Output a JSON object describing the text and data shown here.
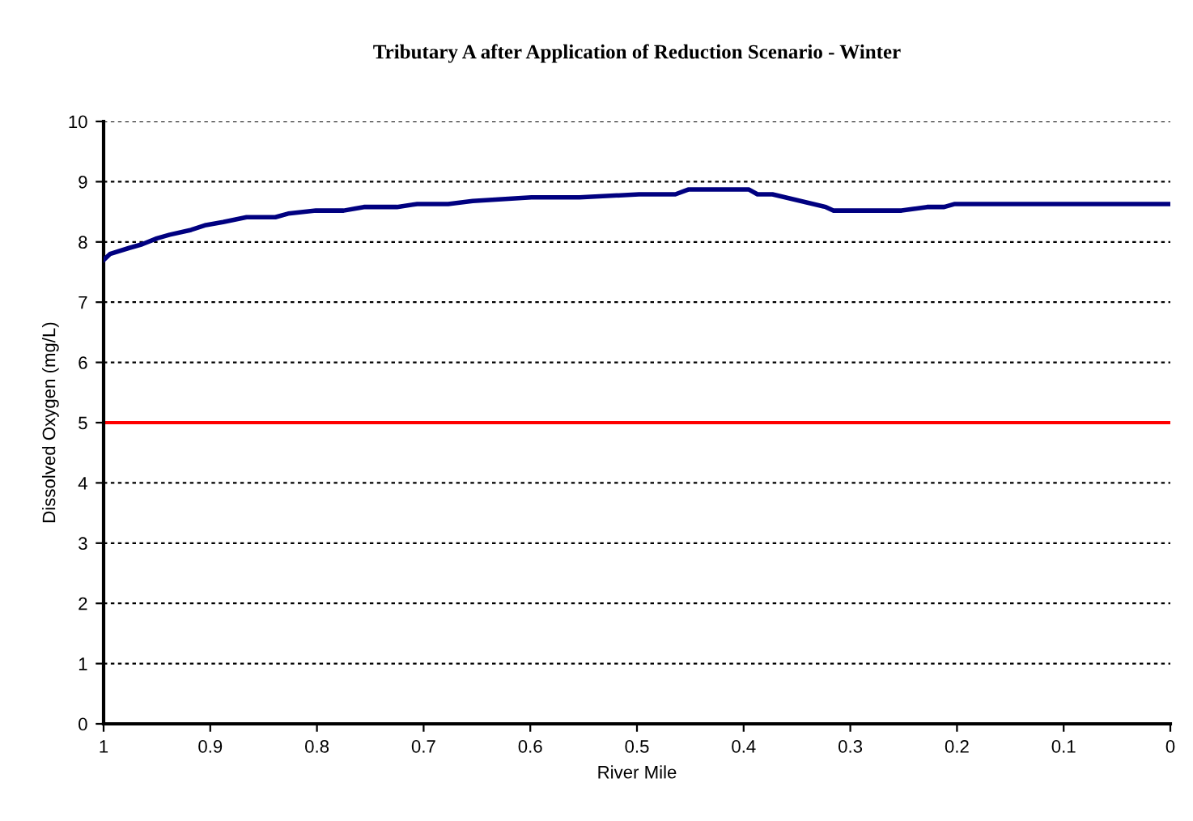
{
  "chart_data": {
    "type": "line",
    "title": "Tributary A after Application of Reduction Scenario - Winter",
    "xlabel": "River Mile",
    "ylabel": "Dissolved Oxygen (mg/L)",
    "series": [
      {
        "color": "#000080",
        "x": [
          1,
          0.994,
          0.976,
          0.964,
          0.95,
          0.938,
          0.918,
          0.904,
          0.888,
          0.866,
          0.839,
          0.827,
          0.801,
          0.775,
          0.756,
          0.725,
          0.706,
          0.677,
          0.654,
          0.599,
          0.554,
          0.498,
          0.464,
          0.452,
          0.395,
          0.387,
          0.373,
          0.323,
          0.316,
          0.252,
          0.228,
          0.212,
          0.202,
          0
        ],
        "values": [
          7.7,
          7.8,
          7.9,
          7.96,
          8.06,
          8.12,
          8.2,
          8.28,
          8.33,
          8.41,
          8.41,
          8.47,
          8.52,
          8.52,
          8.58,
          8.58,
          8.63,
          8.63,
          8.68,
          8.74,
          8.74,
          8.79,
          8.79,
          8.87,
          8.87,
          8.79,
          8.79,
          8.58,
          8.52,
          8.52,
          8.58,
          8.58,
          8.63,
          8.63
        ]
      }
    ],
    "xlim": [
      1,
      0
    ],
    "xticks": [
      1,
      0.9,
      0.8,
      0.7,
      0.6,
      0.5,
      0.4,
      0.3,
      0.2,
      0.1,
      0
    ],
    "ylim": [
      0,
      10
    ],
    "yticks": [
      0,
      1,
      2,
      3,
      4,
      5,
      6,
      7,
      8,
      9,
      10
    ],
    "grid": "y",
    "legend": false,
    "marker": "none",
    "line_style": "solid",
    "ref_lines": [
      {
        "axis": "y",
        "value": 5,
        "color": "#ff0000",
        "line_style": "solid"
      }
    ]
  }
}
